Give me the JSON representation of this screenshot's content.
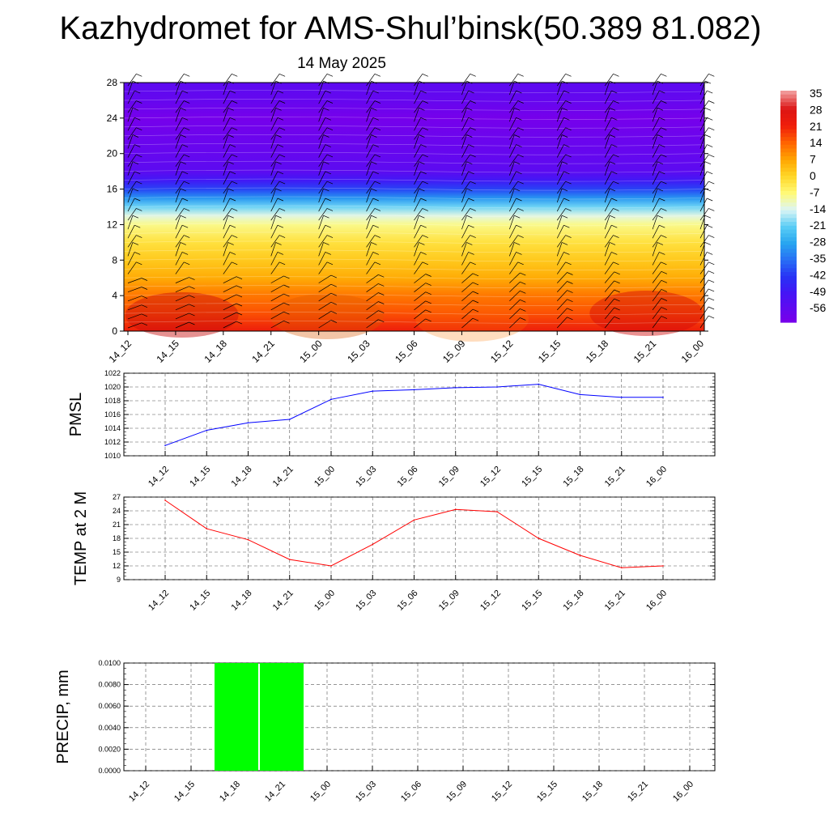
{
  "title": "Kazhydromet for AMS-Shul’binsk(50.389 81.082)",
  "subtitle": "14 May 2025",
  "time_labels": [
    "14_12",
    "14_15",
    "14_18",
    "14_21",
    "15_00",
    "15_03",
    "15_06",
    "15_09",
    "15_12",
    "15_15",
    "15_18",
    "15_21",
    "16_00"
  ],
  "chart_data": [
    {
      "type": "heatmap",
      "title": "",
      "y_ticks": [
        0,
        4,
        8,
        12,
        16,
        20,
        24,
        28
      ],
      "ylim": [
        0,
        28
      ],
      "x_ticks": [
        "14_12",
        "14_15",
        "14_18",
        "14_21",
        "15_00",
        "15_03",
        "15_06",
        "15_09",
        "15_12",
        "15_15",
        "15_18",
        "15_21",
        "16_00"
      ],
      "colorbar_labels": [
        "35",
        "28",
        "21",
        "14",
        "7",
        "0",
        "-7",
        "-14",
        "-21",
        "-28",
        "-35",
        "-42",
        "-49",
        "-56"
      ],
      "overlay": "wind barbs"
    },
    {
      "type": "line",
      "ylabel": "PMSL",
      "ylim": [
        1010,
        1022
      ],
      "y_ticks": [
        1010,
        1012,
        1014,
        1016,
        1018,
        1020,
        1022
      ],
      "x": [
        "14_12",
        "14_15",
        "14_18",
        "14_21",
        "15_00",
        "15_03",
        "15_06",
        "15_09",
        "15_12",
        "15_15",
        "15_18",
        "15_21",
        "16_00"
      ],
      "series": [
        {
          "values": [
            1011.5,
            1013.7,
            1014.8,
            1015.3,
            1018.2,
            1019.4,
            1019.6,
            1019.9,
            1020.0,
            1020.4,
            1018.9,
            1018.5,
            1018.5
          ],
          "color": "#0000ff"
        }
      ]
    },
    {
      "type": "line",
      "ylabel": "TEMP at 2 M",
      "ylim": [
        9,
        27
      ],
      "y_ticks": [
        9,
        12,
        15,
        18,
        21,
        24,
        27
      ],
      "x": [
        "14_12",
        "14_15",
        "14_18",
        "14_21",
        "15_00",
        "15_03",
        "15_06",
        "15_09",
        "15_12",
        "15_15",
        "15_18",
        "15_21",
        "16_00"
      ],
      "series": [
        {
          "values": [
            26.3,
            20.1,
            17.7,
            13.4,
            12.0,
            16.7,
            22.0,
            24.3,
            23.8,
            18.0,
            14.3,
            11.6,
            12.0
          ],
          "color": "#ff0000"
        }
      ]
    },
    {
      "type": "bar",
      "ylabel": "PRECIP, mm",
      "ylim": [
        0,
        0.01
      ],
      "y_ticks": [
        "0.0000",
        "0.0020",
        "0.0040",
        "0.0060",
        "0.0080",
        "0.0100"
      ],
      "categories": [
        "14_12",
        "14_15",
        "14_18",
        "14_21",
        "15_00",
        "15_03",
        "15_06",
        "15_09",
        "15_12",
        "15_15",
        "15_18",
        "15_21",
        "16_00"
      ],
      "values": [
        0,
        0,
        0.01,
        0.01,
        0,
        0,
        0,
        0,
        0,
        0,
        0,
        0,
        0
      ],
      "color": "#00ff00"
    }
  ]
}
